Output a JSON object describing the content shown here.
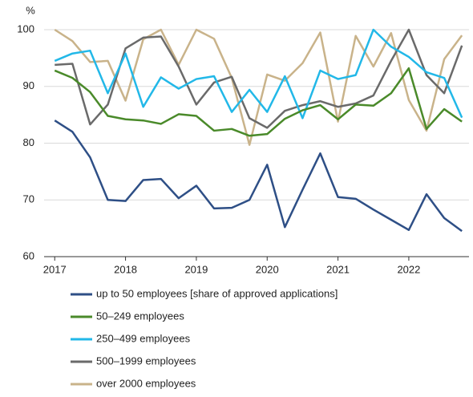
{
  "chart_data": {
    "type": "line",
    "y_label": "%",
    "x": [
      2017,
      2017.25,
      2017.5,
      2017.75,
      2018,
      2018.25,
      2018.5,
      2018.75,
      2019,
      2019.25,
      2019.5,
      2019.75,
      2020,
      2020.25,
      2020.5,
      2020.75,
      2021,
      2021.25,
      2021.5,
      2021.75,
      2022,
      2022.25,
      2022.5,
      2022.75
    ],
    "xlim": [
      2016.85,
      2022.85
    ],
    "xticks": [
      2017,
      2018,
      2019,
      2020,
      2021,
      2022
    ],
    "ylim": [
      60,
      100
    ],
    "yticks": [
      60,
      70,
      80,
      90,
      100
    ],
    "grid": true,
    "series": [
      {
        "name": "up to 50 employees [share of approved applications]",
        "color": "#2e4f86",
        "values": [
          84,
          82,
          77.5,
          70,
          69.8,
          73.5,
          73.7,
          70.3,
          72.5,
          68.5,
          68.6,
          70,
          76.2,
          65.2,
          71.8,
          78.2,
          70.5,
          70.2,
          68.3,
          66.5,
          64.7,
          71,
          66.8,
          64.5
        ]
      },
      {
        "name": "50–249 employees",
        "color": "#4a8a2a",
        "values": [
          92.8,
          91.5,
          89,
          84.8,
          84.2,
          84,
          83.4,
          85.1,
          84.8,
          82.2,
          82.5,
          81.3,
          81.6,
          84.3,
          85.8,
          86.7,
          84.2,
          86.8,
          86.6,
          88.8,
          93.2,
          82.5,
          86,
          83.8
        ]
      },
      {
        "name": "250–499 employees",
        "color": "#22b8e8",
        "values": [
          94.5,
          95.8,
          96.3,
          88.8,
          95.8,
          86.4,
          91.6,
          89.6,
          91.3,
          91.8,
          85.5,
          89.4,
          85.5,
          91.8,
          84.4,
          92.8,
          91.3,
          92,
          100,
          97,
          95.2,
          92.5,
          91.5,
          84.5
        ]
      },
      {
        "name": "500–1999 employees",
        "color": "#6a6a6a",
        "values": [
          93.8,
          94,
          83.3,
          86.8,
          96.7,
          98.6,
          98.8,
          93.5,
          86.8,
          90.7,
          91.7,
          84.4,
          82.7,
          85.7,
          86.7,
          87.4,
          86.4,
          87,
          88.4,
          94.5,
          100,
          92,
          88.8,
          97.2
        ]
      },
      {
        "name": "over 2000 employees",
        "color": "#c9b38a",
        "values": [
          100,
          98,
          94.3,
          94.5,
          87.5,
          98.3,
          100,
          93.8,
          100,
          98.4,
          91.5,
          79.7,
          92.1,
          91,
          94.1,
          99.5,
          83.8,
          98.9,
          93.5,
          99.4,
          87.6,
          82.2,
          94.8,
          99
        ]
      }
    ]
  }
}
